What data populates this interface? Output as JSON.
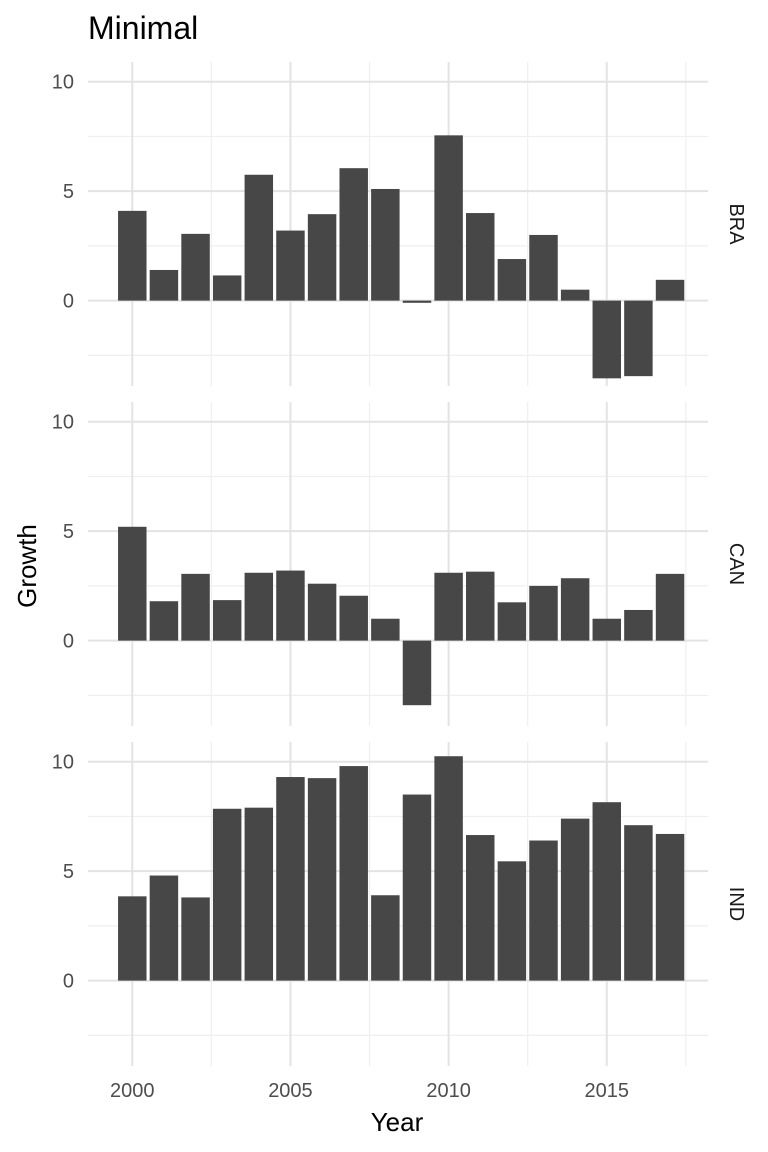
{
  "chart_data": {
    "type": "bar",
    "title": "Minimal",
    "xlabel": "Year",
    "ylabel": "Growth",
    "x": [
      2000,
      2001,
      2002,
      2003,
      2004,
      2005,
      2006,
      2007,
      2008,
      2009,
      2010,
      2011,
      2012,
      2013,
      2014,
      2015,
      2016,
      2017
    ],
    "xlim": [
      1998.6,
      2018.2
    ],
    "ylim": [
      -3.9,
      10.9
    ],
    "x_ticks": [
      2000,
      2005,
      2010,
      2015
    ],
    "x_tick_labels": [
      "2000",
      "2005",
      "2010",
      "2015"
    ],
    "y_ticks": [
      0,
      5,
      10
    ],
    "y_tick_labels": [
      "0",
      "5",
      "10"
    ],
    "grid": true,
    "bar_color": "#474747",
    "series": [
      {
        "name": "BRA",
        "values": [
          4.1,
          1.4,
          3.05,
          1.15,
          5.75,
          3.2,
          3.95,
          6.05,
          5.1,
          -0.1,
          7.55,
          4.0,
          1.9,
          3.0,
          0.5,
          -3.55,
          -3.45,
          0.95
        ]
      },
      {
        "name": "CAN",
        "values": [
          5.2,
          1.8,
          3.05,
          1.85,
          3.1,
          3.2,
          2.6,
          2.05,
          1.0,
          -2.95,
          3.1,
          3.15,
          1.75,
          2.5,
          2.85,
          1.0,
          1.4,
          3.05
        ]
      },
      {
        "name": "IND",
        "values": [
          3.85,
          4.8,
          3.8,
          7.85,
          7.9,
          9.3,
          9.25,
          9.8,
          3.9,
          8.5,
          10.25,
          6.65,
          5.45,
          6.4,
          7.4,
          8.15,
          7.1,
          6.7
        ]
      }
    ]
  }
}
